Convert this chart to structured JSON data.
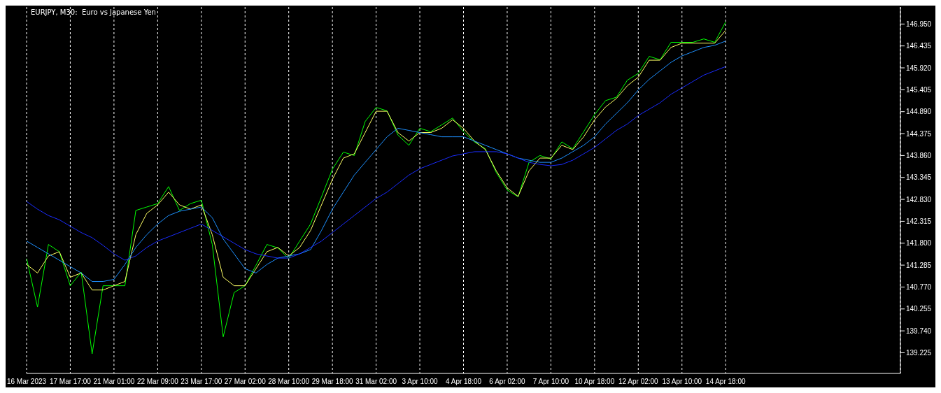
{
  "chart_data": {
    "type": "line",
    "title": "EURJPY, M30:  Euro vs Japanese Yen",
    "categories": [
      "16 Mar 2023",
      null,
      null,
      null,
      "17 Mar 17:00",
      null,
      null,
      null,
      "21 Mar 01:00",
      null,
      null,
      null,
      "22 Mar 09:00",
      null,
      null,
      null,
      "23 Mar 17:00",
      null,
      null,
      null,
      "27 Mar 02:00",
      null,
      null,
      null,
      "28 Mar 10:00",
      null,
      null,
      null,
      "29 Mar 18:00",
      null,
      null,
      null,
      "31 Mar 02:00",
      null,
      null,
      null,
      "3 Apr 10:00",
      null,
      null,
      null,
      "4 Apr 18:00",
      null,
      null,
      null,
      "6 Apr 02:00",
      null,
      null,
      null,
      "7 Apr 10:00",
      null,
      null,
      null,
      "10 Apr 18:00",
      null,
      null,
      null,
      "12 Apr 02:00",
      null,
      null,
      null,
      "13 Apr 10:00",
      null,
      null,
      null,
      "14 Apr 18:00",
      null,
      null,
      null,
      null,
      null,
      null,
      null,
      null,
      null,
      null,
      null,
      null,
      null,
      null,
      null,
      null
    ],
    "series": [
      {
        "color": "#00ff00",
        "values": [
          141.44,
          140.3,
          141.77,
          141.6,
          140.8,
          141.12,
          139.2,
          140.8,
          140.8,
          140.8,
          142.57,
          142.65,
          142.73,
          143.13,
          142.57,
          142.73,
          142.81,
          141.77,
          139.6,
          140.64,
          140.8,
          141.28,
          141.77,
          141.69,
          141.44,
          141.85,
          142.25,
          142.89,
          143.54,
          143.94,
          143.86,
          144.66,
          144.99,
          144.91,
          144.34,
          144.1,
          144.5,
          144.42,
          144.58,
          144.74,
          144.42,
          144.18,
          144.02,
          143.46,
          143.05,
          142.89,
          143.7,
          143.86,
          143.78,
          144.18,
          144.02,
          144.42,
          144.82,
          145.15,
          145.23,
          145.63,
          145.79,
          146.19,
          146.11,
          146.52,
          146.52,
          146.52,
          146.6,
          146.52,
          147.0,
          null,
          null,
          null,
          null,
          null,
          null,
          null,
          null,
          null,
          null,
          null,
          null,
          null,
          null,
          null,
          null
        ]
      },
      {
        "color": "#ffff66",
        "values": [
          141.3,
          141.1,
          141.5,
          141.6,
          141.0,
          141.1,
          140.7,
          140.7,
          140.8,
          140.9,
          142.0,
          142.5,
          142.7,
          143.0,
          142.7,
          142.6,
          142.7,
          142.0,
          141.0,
          140.8,
          140.8,
          141.2,
          141.6,
          141.7,
          141.5,
          141.7,
          142.1,
          142.7,
          143.3,
          143.8,
          143.9,
          144.4,
          144.9,
          144.9,
          144.4,
          144.2,
          144.4,
          144.4,
          144.5,
          144.7,
          144.5,
          144.2,
          144.0,
          143.5,
          143.1,
          142.9,
          143.5,
          143.8,
          143.8,
          144.1,
          144.0,
          144.3,
          144.7,
          145.0,
          145.2,
          145.5,
          145.7,
          146.1,
          146.1,
          146.4,
          146.5,
          146.5,
          146.5,
          146.5,
          146.8,
          null,
          null,
          null,
          null,
          null,
          null,
          null,
          null,
          null,
          null,
          null,
          null,
          null,
          null,
          null,
          null
        ]
      },
      {
        "color": "#1e90ff",
        "values": [
          141.85,
          141.7,
          141.55,
          141.4,
          141.25,
          141.1,
          140.9,
          140.9,
          140.95,
          141.3,
          141.7,
          142.0,
          142.25,
          142.45,
          142.55,
          142.6,
          142.65,
          142.4,
          141.9,
          141.55,
          141.2,
          141.1,
          141.3,
          141.45,
          141.5,
          141.55,
          141.65,
          142.1,
          142.6,
          143.0,
          143.4,
          143.7,
          144.0,
          144.3,
          144.5,
          144.45,
          144.4,
          144.35,
          144.3,
          144.3,
          144.3,
          144.2,
          144.1,
          144.0,
          143.9,
          143.8,
          143.75,
          143.7,
          143.7,
          143.8,
          143.95,
          144.1,
          144.3,
          144.6,
          144.85,
          145.1,
          145.4,
          145.65,
          145.85,
          146.05,
          146.2,
          146.3,
          146.4,
          146.45,
          146.55,
          null,
          null,
          null,
          null,
          null,
          null,
          null,
          null,
          null,
          null,
          null,
          null,
          null,
          null,
          null,
          null
        ]
      },
      {
        "color": "#1a2cff",
        "values": [
          142.78,
          142.6,
          142.45,
          142.35,
          142.2,
          142.05,
          141.93,
          141.75,
          141.55,
          141.4,
          141.5,
          141.7,
          141.85,
          141.95,
          142.05,
          142.15,
          142.25,
          142.1,
          141.95,
          141.8,
          141.65,
          141.55,
          141.5,
          141.45,
          141.45,
          141.55,
          141.7,
          141.85,
          142.05,
          142.25,
          142.45,
          142.65,
          142.85,
          143.0,
          143.2,
          143.4,
          143.55,
          143.65,
          143.75,
          143.85,
          143.9,
          143.95,
          143.95,
          143.95,
          143.9,
          143.8,
          143.7,
          143.65,
          143.62,
          143.65,
          143.75,
          143.9,
          144.05,
          144.25,
          144.45,
          144.6,
          144.8,
          144.95,
          145.1,
          145.3,
          145.45,
          145.6,
          145.75,
          145.85,
          145.95,
          null,
          null,
          null,
          null,
          null,
          null,
          null,
          null,
          null,
          null,
          null,
          null,
          null,
          null,
          null,
          null
        ]
      }
    ],
    "ylim": [
      138.74,
      147.35
    ],
    "yticks": [
      139.225,
      {
        "value": 139.74,
        "label": "139.740"
      },
      140.255,
      {
        "value": 140.77,
        "label": "140.770"
      },
      141.285,
      {
        "value": 141.8,
        "label": "141.800"
      },
      142.315,
      {
        "value": 142.83,
        "label": "142.830"
      },
      143.345,
      {
        "value": 143.86,
        "label": "143.860"
      },
      144.375,
      {
        "value": 144.89,
        "label": "144.890"
      },
      145.405,
      {
        "value": 145.92,
        "label": "145.920"
      },
      146.435,
      {
        "value": 146.95,
        "label": "146.950"
      }
    ],
    "grid": "x",
    "marker": "none",
    "line_style": "solid"
  }
}
